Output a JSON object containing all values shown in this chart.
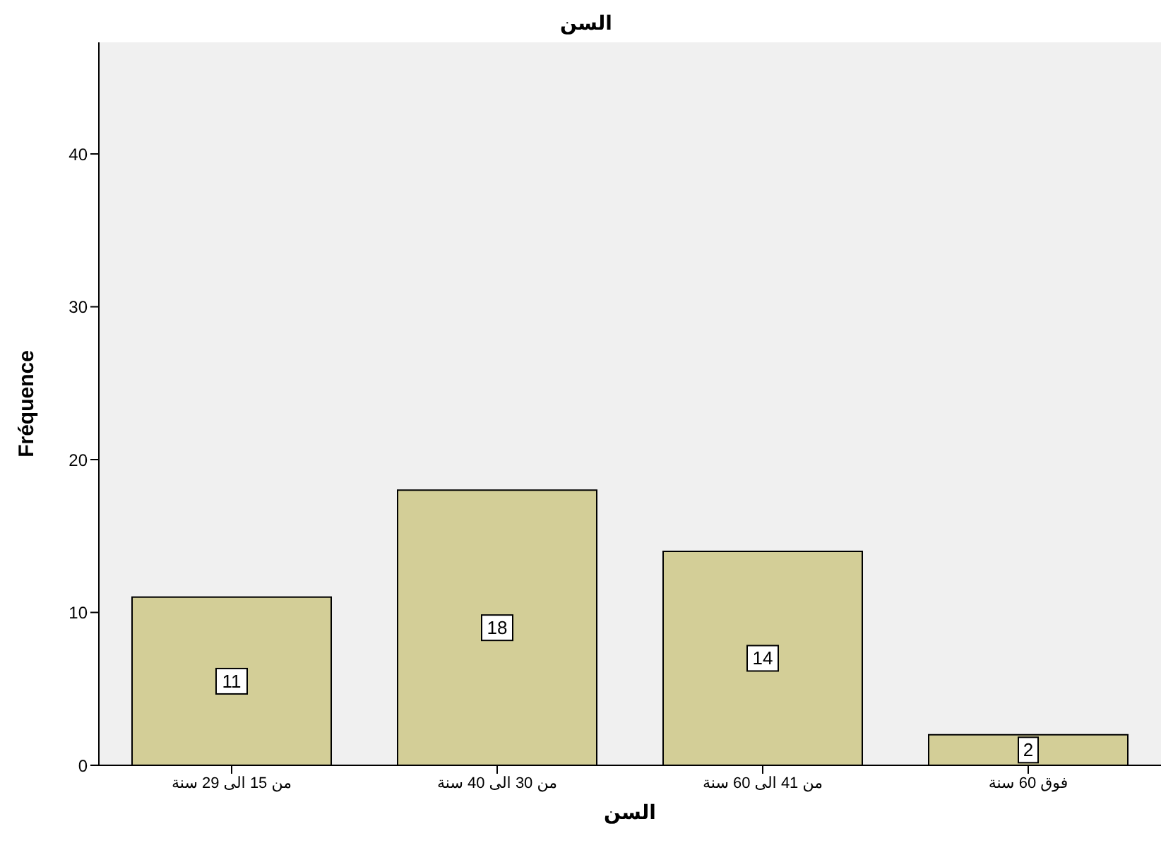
{
  "chart_data": {
    "type": "bar",
    "title": "السن",
    "xlabel": "السن",
    "ylabel": "Fréquence",
    "categories": [
      "من 15 الى 29 سنة",
      "من 30 الى 40 سنة",
      "من 41 الى 60 سنة",
      "فوق 60 سنة"
    ],
    "values": [
      11,
      18,
      14,
      2
    ],
    "color": "#d3ce97",
    "ylim": [
      0,
      47.3
    ],
    "yticks": [
      0,
      10,
      20,
      30,
      40
    ],
    "grid": false,
    "data_labels": true
  }
}
